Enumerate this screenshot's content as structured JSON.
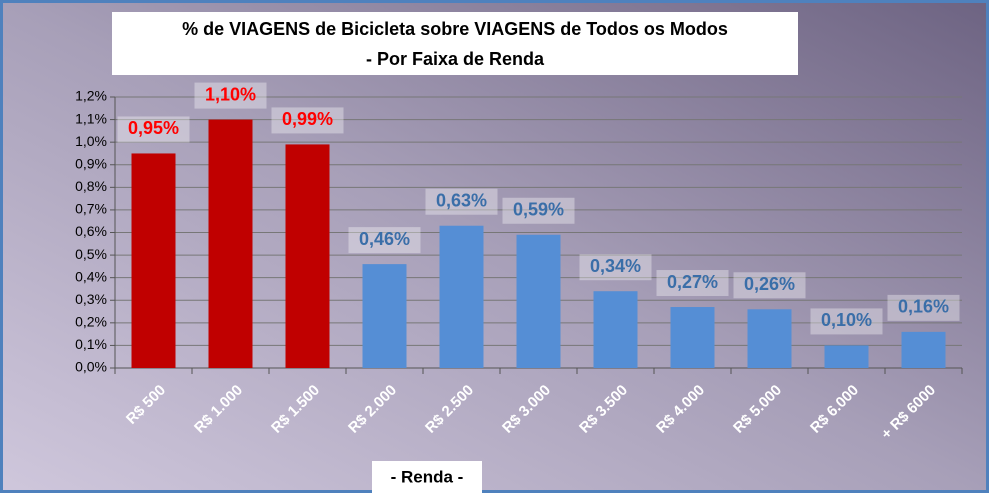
{
  "chart_data": {
    "type": "bar",
    "title": "% de VIAGENS de Bicicleta sobre VIAGENS de Todos os Modos",
    "subtitle": "- Por Faixa de Renda",
    "x_label": "- Renda -",
    "categories": [
      "R$ 500",
      "R$ 1.000",
      "R$ 1.500",
      "R$ 2.000",
      "R$ 2.500",
      "R$ 3.000",
      "R$ 3.500",
      "R$ 4.000",
      "R$ 5.000",
      "R$ 6.000",
      "+ R$ 6000"
    ],
    "values": [
      0.95,
      1.1,
      0.99,
      0.46,
      0.63,
      0.59,
      0.34,
      0.27,
      0.26,
      0.1,
      0.16
    ],
    "value_labels": [
      "0,95%",
      "1,10%",
      "0,99%",
      "0,46%",
      "0,63%",
      "0,59%",
      "0,34%",
      "0,27%",
      "0,26%",
      "0,10%",
      "0,16%"
    ],
    "colors": [
      "#c00000",
      "#c00000",
      "#c00000",
      "#558ed5",
      "#558ed5",
      "#558ed5",
      "#558ed5",
      "#558ed5",
      "#558ed5",
      "#558ed5",
      "#558ed5"
    ],
    "label_colors": [
      "#ff0000",
      "#ff0000",
      "#ff0000",
      "#3a6ea8",
      "#3a6ea8",
      "#3a6ea8",
      "#3a6ea8",
      "#3a6ea8",
      "#3a6ea8",
      "#3a6ea8",
      "#3a6ea8"
    ],
    "ylim": [
      0,
      1.2
    ],
    "yticks": [
      {
        "value": 0,
        "label": "0,0%"
      },
      {
        "value": 0.1,
        "label": "0,1%"
      },
      {
        "value": 0.2,
        "label": "0,2%"
      },
      {
        "value": 0.3,
        "label": "0,3%"
      },
      {
        "value": 0.4,
        "label": "0,4%"
      },
      {
        "value": 0.5,
        "label": "0,5%"
      },
      {
        "value": 0.6,
        "label": "0,6%"
      },
      {
        "value": 0.7,
        "label": "0,7%"
      },
      {
        "value": 0.8,
        "label": "0,8%"
      },
      {
        "value": 0.9,
        "label": "0,9%"
      },
      {
        "value": 1.0,
        "label": "1,0%"
      },
      {
        "value": 1.1,
        "label": "1,1%"
      },
      {
        "value": 1.2,
        "label": "1,2%"
      }
    ],
    "grid": true
  }
}
